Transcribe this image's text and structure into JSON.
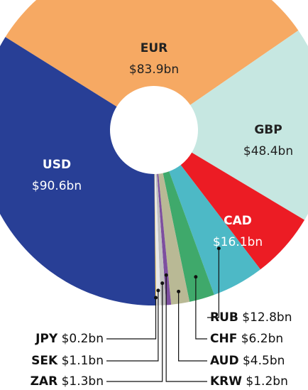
{
  "chart_data": {
    "type": "donut",
    "categories": [
      "EUR",
      "GBP",
      "CAD",
      "RUB",
      "CHF",
      "AUD",
      "KRW",
      "ZAR",
      "SEK",
      "JPY",
      "USD"
    ],
    "values": [
      83.9,
      48.4,
      16.1,
      12.8,
      6.2,
      4.5,
      1.2,
      1.3,
      1.1,
      0.2,
      90.6
    ],
    "value_labels": [
      "$83.9bn",
      "$48.4bn",
      "$16.1bn",
      "$12.8bn",
      "$6.2bn",
      "$4.5bn",
      "$1.2bn",
      "$1.3bn",
      "$1.1bn",
      "$0.2bn",
      "$90.6bn"
    ],
    "colors": [
      "#f6a963",
      "#c6e7e1",
      "#ec1c24",
      "#4db9c6",
      "#3fa96b",
      "#b9b995",
      "#7d4f9f",
      "#bfbfbf",
      "#e8e8e8",
      "#f4c13b",
      "#283f96"
    ]
  }
}
